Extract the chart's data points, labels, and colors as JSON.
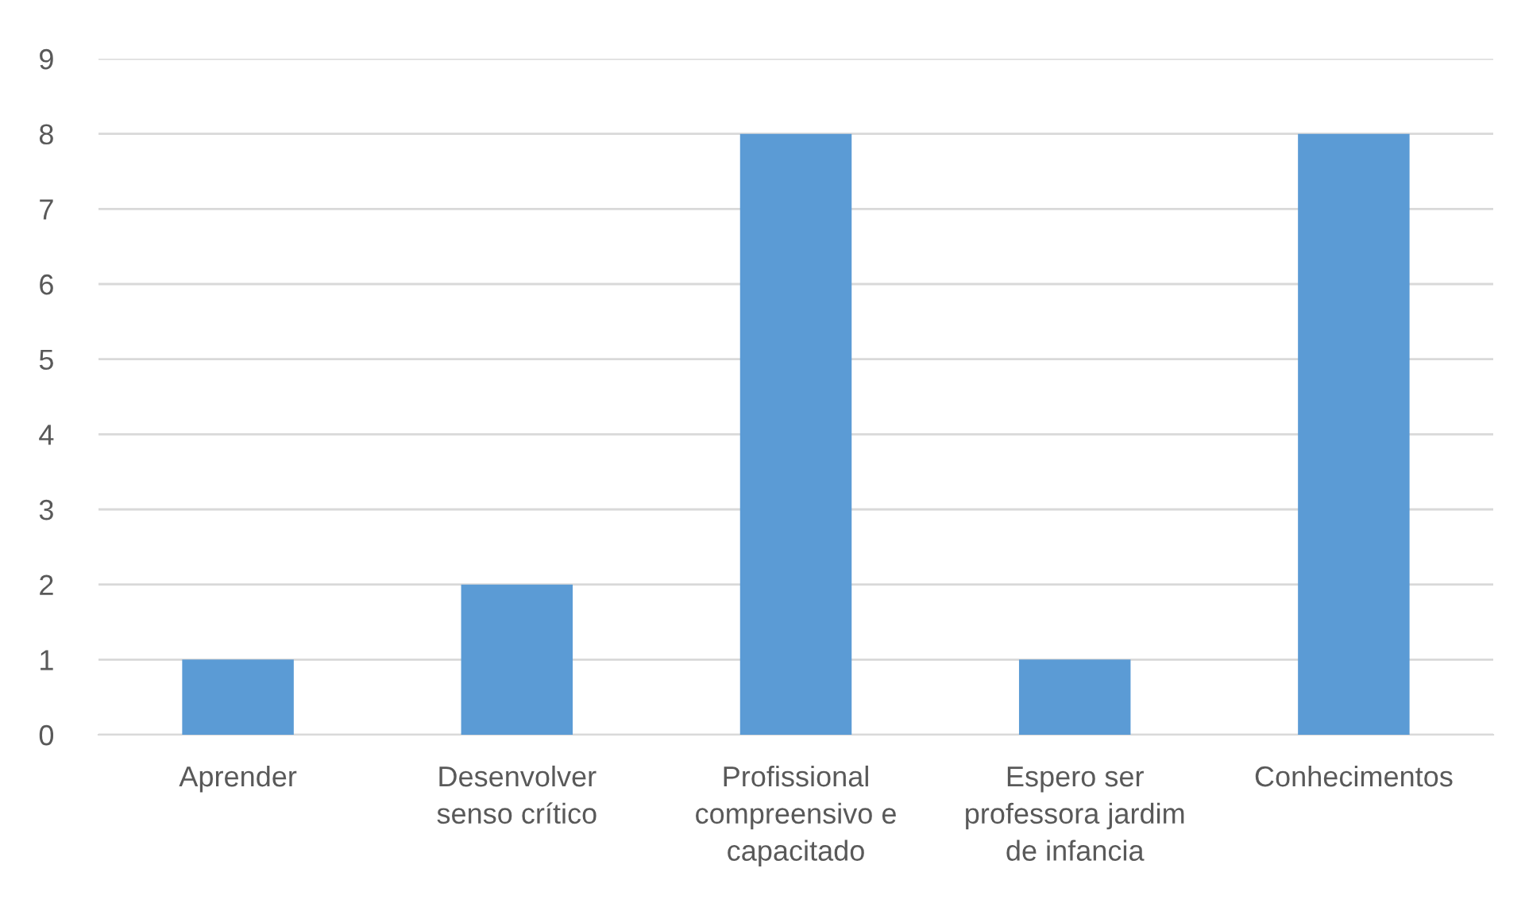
{
  "chart_data": {
    "type": "bar",
    "categories": [
      "Aprender",
      "Desenvolver\nsenso crítico",
      "Profissional\ncompreensivo e\ncapacitado",
      "Espero ser\nprofessora jardim\nde infancia",
      "Conhecimentos"
    ],
    "values": [
      1,
      2,
      8,
      1,
      8
    ],
    "color": "#5b9bd5",
    "ylim": [
      0,
      9
    ],
    "yticks": [
      0,
      1,
      2,
      3,
      4,
      5,
      6,
      7,
      8,
      9
    ],
    "grid": "y"
  }
}
